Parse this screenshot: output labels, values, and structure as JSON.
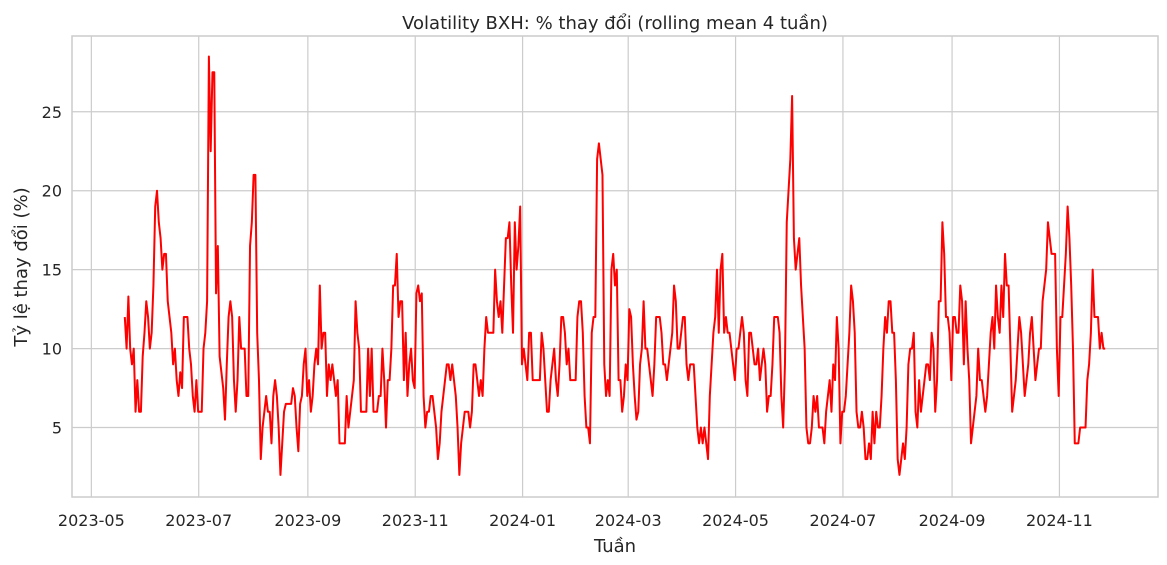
{
  "chart_data": {
    "type": "line",
    "title": "Volatility BXH: % thay đổi (rolling mean 4 tuần)",
    "xlabel": "Tuần",
    "ylabel": "Tỷ lệ thay đổi (%)",
    "x_start": "2023-05-20",
    "x_end": "2024-11-27",
    "xlim": [
      "2023-04-20",
      "2024-12-27"
    ],
    "ylim": [
      0.6,
      29.8
    ],
    "x_ticks": [
      "2023-05",
      "2023-07",
      "2023-09",
      "2023-11",
      "2024-01",
      "2024-03",
      "2024-05",
      "2024-07",
      "2024-09",
      "2024-11"
    ],
    "y_ticks": [
      5,
      10,
      15,
      20,
      25
    ],
    "grid": true,
    "legend": "none",
    "series": [
      {
        "color": "#ff0000",
        "values": [
          12,
          10,
          13.3,
          10,
          9,
          10,
          6,
          8,
          6,
          6,
          9.5,
          11,
          13,
          12,
          10,
          11,
          14,
          19,
          20,
          18,
          17,
          15,
          16,
          16,
          13,
          12,
          11,
          9,
          10,
          8,
          7,
          8.5,
          7.5,
          12,
          12,
          12,
          10,
          9,
          7,
          6,
          8,
          6,
          6,
          6,
          10,
          11,
          13,
          28.5,
          22.5,
          27.5,
          27.5,
          13.5,
          16.5,
          9.5,
          8.5,
          7.5,
          5.5,
          9,
          12,
          13,
          12,
          8,
          6,
          8,
          12,
          10,
          10,
          10,
          7,
          7,
          16.5,
          18,
          21,
          21,
          11,
          8,
          3,
          5,
          6,
          7,
          6,
          6,
          4,
          7,
          8,
          7,
          5,
          2,
          4,
          6,
          6.5,
          6.5,
          6.5,
          6.5,
          7.5,
          7,
          5,
          3.5,
          6.5,
          7,
          9,
          10,
          7,
          8,
          6,
          7,
          9,
          10,
          9,
          14,
          10,
          11,
          11,
          7,
          9,
          8,
          9,
          8,
          7,
          8,
          4,
          4,
          4,
          4,
          7,
          5,
          6,
          7,
          8,
          13,
          11,
          10,
          6,
          6,
          6,
          6,
          10,
          7,
          10,
          6,
          6,
          6,
          7,
          7,
          10,
          8,
          5,
          8,
          8,
          10,
          14,
          14,
          16,
          12,
          13,
          13,
          8,
          11,
          7,
          9,
          10,
          8,
          7.5,
          13.5,
          14,
          13,
          13.5,
          7,
          5,
          6,
          6,
          7,
          7,
          6,
          5,
          3,
          4,
          6,
          7,
          8,
          9,
          9,
          8,
          9,
          8,
          7,
          5,
          2,
          4,
          5,
          6,
          6,
          6,
          5,
          6,
          9,
          9,
          8,
          7,
          8,
          7,
          10,
          12,
          11,
          11,
          11,
          11,
          15,
          13,
          12,
          13,
          11,
          14,
          17,
          17,
          18,
          14,
          11,
          18,
          15,
          16.5,
          19,
          9,
          10,
          9,
          8,
          11,
          11,
          8,
          8,
          8,
          8,
          8,
          11,
          10,
          8,
          6,
          6,
          8,
          9,
          10,
          8,
          7,
          9,
          12,
          12,
          11,
          9,
          10,
          8,
          8,
          8,
          8,
          12,
          13,
          13,
          11,
          7,
          5,
          5,
          4,
          11,
          12,
          12,
          22,
          23,
          22,
          21,
          9,
          7,
          8,
          7,
          15,
          16,
          14,
          15,
          8,
          8,
          6,
          7,
          9,
          8,
          12.5,
          12,
          9,
          7,
          5.5,
          6,
          9,
          10,
          13,
          10,
          10,
          9,
          8,
          7,
          9,
          12,
          12,
          12,
          11,
          9,
          9,
          8,
          9,
          10,
          11,
          14,
          13,
          10,
          10,
          11,
          12,
          12,
          9,
          8,
          9,
          9,
          9,
          7,
          5,
          4,
          5,
          4,
          5,
          4,
          3,
          7,
          9,
          11,
          12,
          15,
          11,
          15,
          16,
          11,
          12,
          11,
          11,
          10,
          9,
          8,
          10,
          10,
          11,
          12,
          11,
          8,
          7,
          11,
          11,
          10,
          9,
          9,
          10,
          8,
          9,
          10,
          9,
          6,
          7,
          7,
          9,
          12,
          12,
          12,
          11,
          7,
          5,
          9,
          18,
          20,
          22,
          26,
          17,
          15,
          16,
          17,
          14,
          12,
          10,
          5,
          4,
          4,
          5,
          7,
          6,
          7,
          5,
          5,
          5,
          4,
          6,
          7,
          8,
          6,
          9,
          8,
          12,
          10,
          4,
          6,
          6,
          7,
          9,
          11,
          14,
          13,
          11,
          6,
          5,
          5,
          6,
          5,
          3,
          3,
          4,
          3,
          6,
          4,
          6,
          5,
          5,
          7,
          10,
          12,
          11,
          13,
          13,
          11,
          11,
          8,
          3,
          2,
          3,
          4,
          3,
          5,
          9,
          10,
          10,
          11,
          6,
          5,
          8,
          6,
          7,
          8,
          9,
          9,
          8,
          11,
          10,
          6,
          8,
          13,
          13,
          18,
          16,
          12,
          12,
          11,
          8,
          12,
          12,
          11,
          11,
          14,
          13,
          9,
          13,
          10,
          8,
          4,
          5,
          6,
          7,
          10,
          8,
          8,
          7,
          6,
          7,
          9,
          11,
          12,
          10,
          14,
          12,
          11,
          14,
          12,
          16,
          14,
          14,
          10,
          6,
          7,
          8,
          10,
          12,
          11,
          9,
          7,
          8,
          9,
          11,
          12,
          10,
          8,
          9,
          10,
          10,
          13,
          14,
          15,
          18,
          17,
          16,
          16,
          16,
          10,
          7,
          12,
          12,
          14,
          16,
          19,
          17,
          14,
          10,
          4,
          4,
          4,
          5,
          5,
          5,
          5,
          8,
          9,
          11,
          15,
          12,
          12,
          12,
          10,
          11,
          10,
          10
        ]
      }
    ]
  }
}
